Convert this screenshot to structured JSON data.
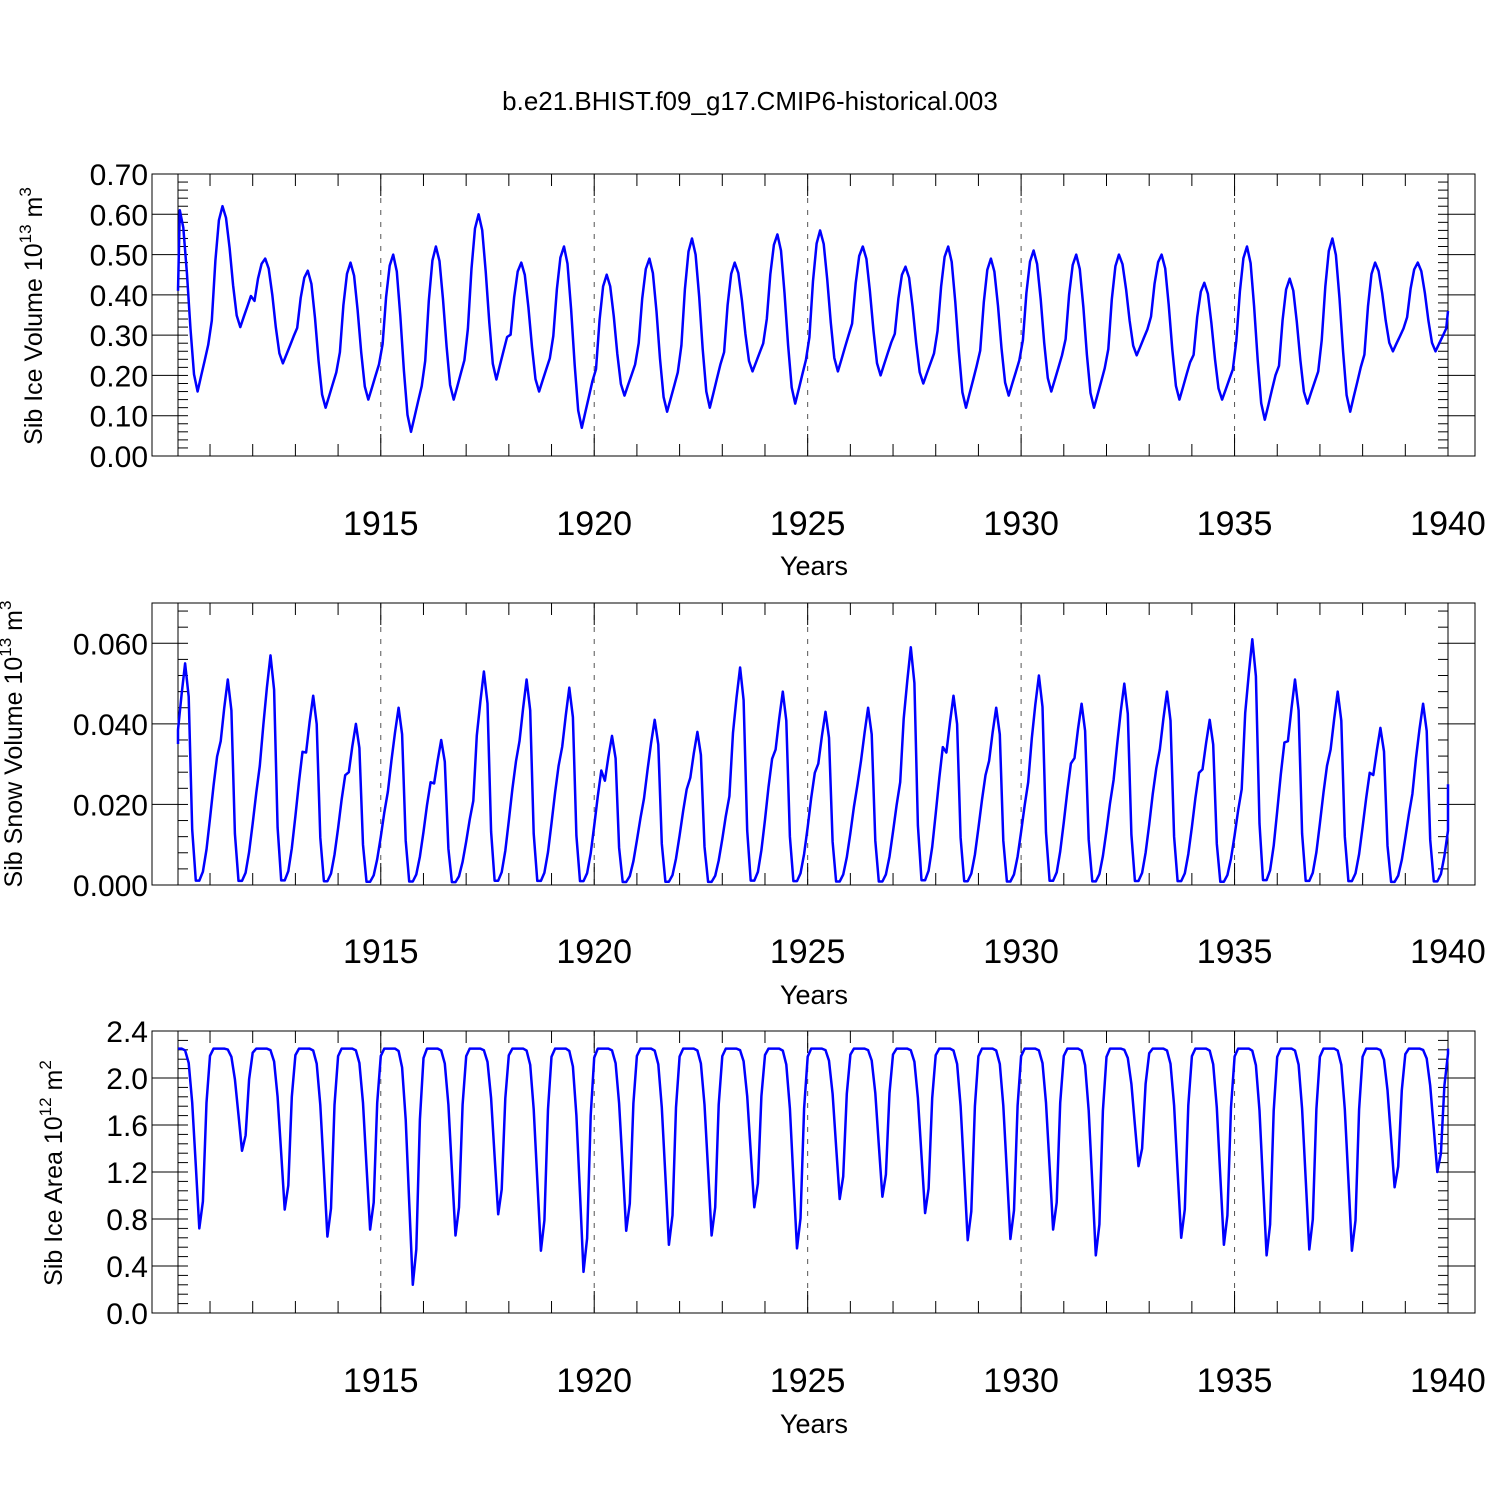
{
  "figure": {
    "title": "b.e21.BHIST.f09_g17.CMIP6-historical.003"
  },
  "chart_data": [
    {
      "type": "line",
      "ylabel": {
        "prefix": "Sib Ice Volume 10",
        "sup1": "13",
        "mid": " m",
        "sup2": "3"
      },
      "xlabel": "Years",
      "xlim": [
        1910.25,
        1940
      ],
      "ylim": [
        0,
        0.7
      ],
      "yticks": [
        0.0,
        0.1,
        0.2,
        0.3,
        0.4,
        0.5,
        0.6,
        0.7
      ],
      "ytick_labels": [
        "0.00",
        "0.10",
        "0.20",
        "0.30",
        "0.40",
        "0.50",
        "0.60",
        "0.70"
      ],
      "xticks": [
        1915,
        1920,
        1925,
        1930,
        1935,
        1940
      ],
      "xtick_labels": [
        "1915",
        "1920",
        "1925",
        "1930",
        "1935",
        "1940"
      ],
      "grid": "dashed vertical lines at major x ticks",
      "line_color": "#0000ff",
      "annual_peaks": [
        0.61,
        0.62,
        0.49,
        0.46,
        0.48,
        0.5,
        0.52,
        0.6,
        0.48,
        0.52,
        0.45,
        0.49,
        0.54,
        0.48,
        0.55,
        0.56,
        0.52,
        0.47,
        0.52,
        0.49,
        0.51,
        0.5,
        0.5,
        0.5,
        0.43,
        0.52,
        0.44,
        0.54,
        0.48
      ],
      "annual_troughs": [
        0.16,
        0.32,
        0.23,
        0.12,
        0.14,
        0.06,
        0.14,
        0.19,
        0.16,
        0.07,
        0.15,
        0.11,
        0.12,
        0.21,
        0.13,
        0.21,
        0.2,
        0.18,
        0.12,
        0.15,
        0.16,
        0.12,
        0.25,
        0.14,
        0.14,
        0.09,
        0.13,
        0.11,
        0.26
      ],
      "start_value": 0.41,
      "end_value": 0.36
    },
    {
      "type": "line",
      "ylabel": {
        "prefix": "Sib Snow Volume 10",
        "sup1": "13",
        "mid": " m",
        "sup2": "3"
      },
      "xlabel": "Years",
      "xlim": [
        1910.25,
        1940
      ],
      "ylim": [
        0,
        0.07
      ],
      "yticks": [
        0.0,
        0.02,
        0.04,
        0.06
      ],
      "ytick_labels": [
        "0.000",
        "0.020",
        "0.040",
        "0.060"
      ],
      "xticks": [
        1915,
        1920,
        1925,
        1930,
        1935,
        1940
      ],
      "xtick_labels": [
        "1915",
        "1920",
        "1925",
        "1930",
        "1935",
        "1940"
      ],
      "grid": "dashed vertical lines at major x ticks",
      "line_color": "#0000ff",
      "annual_peaks": [
        0.055,
        0.051,
        0.057,
        0.047,
        0.04,
        0.044,
        0.036,
        0.053,
        0.051,
        0.049,
        0.037,
        0.041,
        0.038,
        0.054,
        0.048,
        0.043,
        0.044,
        0.059,
        0.047,
        0.044,
        0.052,
        0.045,
        0.05,
        0.048,
        0.041,
        0.061,
        0.051,
        0.048,
        0.039,
        0.045
      ],
      "start_value": 0.035,
      "end_value": 0.025
    },
    {
      "type": "line",
      "ylabel": {
        "prefix": "Sib Ice Area 10",
        "sup1": "12",
        "mid": " m",
        "sup2": "2"
      },
      "xlabel": "Years",
      "xlim": [
        1910.25,
        1940
      ],
      "ylim": [
        0,
        2.4
      ],
      "yticks": [
        0.0,
        0.4,
        0.8,
        1.2,
        1.6,
        2.0,
        2.4
      ],
      "ytick_labels": [
        "0.0",
        "0.4",
        "0.8",
        "1.2",
        "1.6",
        "2.0",
        "2.4"
      ],
      "xticks": [
        1915,
        1920,
        1925,
        1930,
        1935,
        1940
      ],
      "xtick_labels": [
        "1915",
        "1920",
        "1925",
        "1930",
        "1935",
        "1940"
      ],
      "grid": "dashed vertical lines at major x ticks",
      "line_color": "#0000ff",
      "annual_max": 2.25,
      "annual_minima": [
        0.72,
        1.38,
        0.88,
        0.65,
        0.71,
        0.24,
        0.66,
        0.84,
        0.53,
        0.35,
        0.7,
        0.58,
        0.66,
        0.9,
        0.55,
        0.97,
        0.99,
        0.85,
        0.62,
        0.63,
        0.71,
        0.49,
        1.25,
        0.64,
        0.58,
        0.49,
        0.54,
        0.53,
        1.07,
        1.2
      ],
      "start_value": 2.25,
      "end_value": 2.25
    }
  ]
}
